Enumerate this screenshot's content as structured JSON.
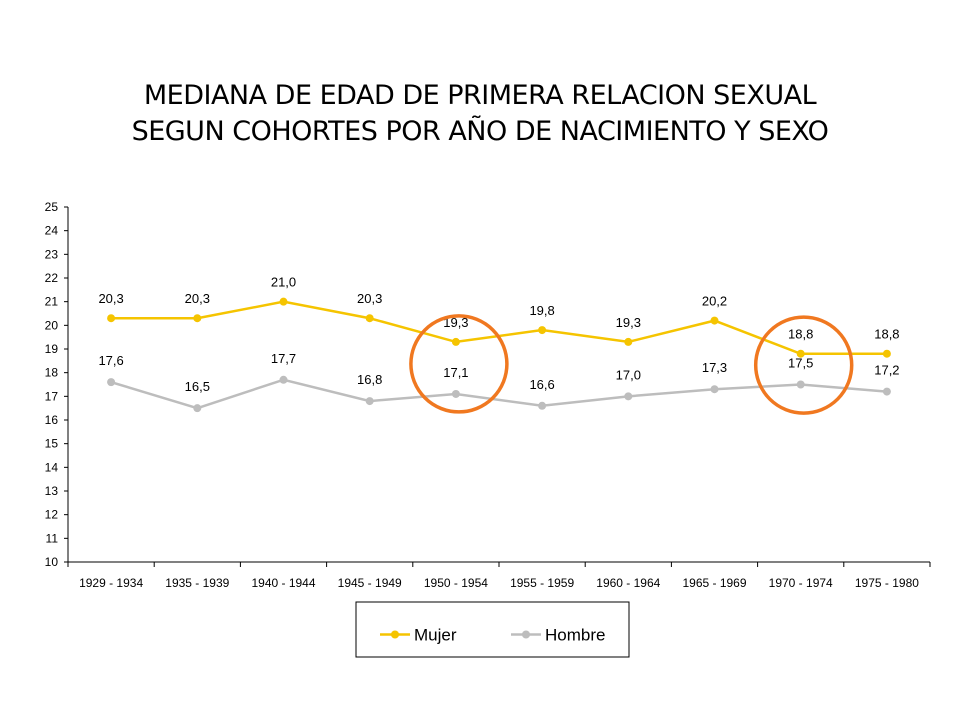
{
  "title": {
    "line1": "MEDIANA DE EDAD DE PRIMERA RELACION SEXUAL",
    "line2": "SEGUN COHORTES POR AÑO DE NACIMIENTO Y SEXO"
  },
  "colors": {
    "mujer": "#F5C400",
    "hombre": "#BDBDBD",
    "highlight": "#F07820",
    "axis": "#000000"
  },
  "chart_data": {
    "type": "line",
    "categories": [
      "1929 - 1934",
      "1935 - 1939",
      "1940 - 1944",
      "1945 - 1949",
      "1950 - 1954",
      "1955 - 1959",
      "1960 - 1964",
      "1965 - 1969",
      "1970 - 1974",
      "1975 - 1980"
    ],
    "series": [
      {
        "name": "Mujer",
        "color": "#F5C400",
        "values": [
          20.3,
          20.3,
          21.0,
          20.3,
          19.3,
          19.8,
          19.3,
          20.2,
          18.8,
          18.8
        ],
        "labels": [
          "20,3",
          "20,3",
          "21,0",
          "20,3",
          "19,3",
          "19,8",
          "19,3",
          "20,2",
          "18,8",
          "18,8"
        ]
      },
      {
        "name": "Hombre",
        "color": "#BDBDBD",
        "values": [
          17.6,
          16.5,
          17.7,
          16.8,
          17.1,
          16.6,
          17.0,
          17.3,
          17.5,
          17.2
        ],
        "labels": [
          "17,6",
          "16,5",
          "17,7",
          "16,8",
          "17,1",
          "16,6",
          "17,0",
          "17,3",
          "17,5",
          "17,2"
        ]
      }
    ],
    "ylim": [
      10,
      25
    ],
    "yticks": [
      10,
      11,
      12,
      13,
      14,
      15,
      16,
      17,
      18,
      19,
      20,
      21,
      22,
      23,
      24,
      25
    ],
    "grid": false,
    "legend_position": "bottom",
    "highlights": [
      "1950 - 1954",
      "1970 - 1974"
    ]
  }
}
